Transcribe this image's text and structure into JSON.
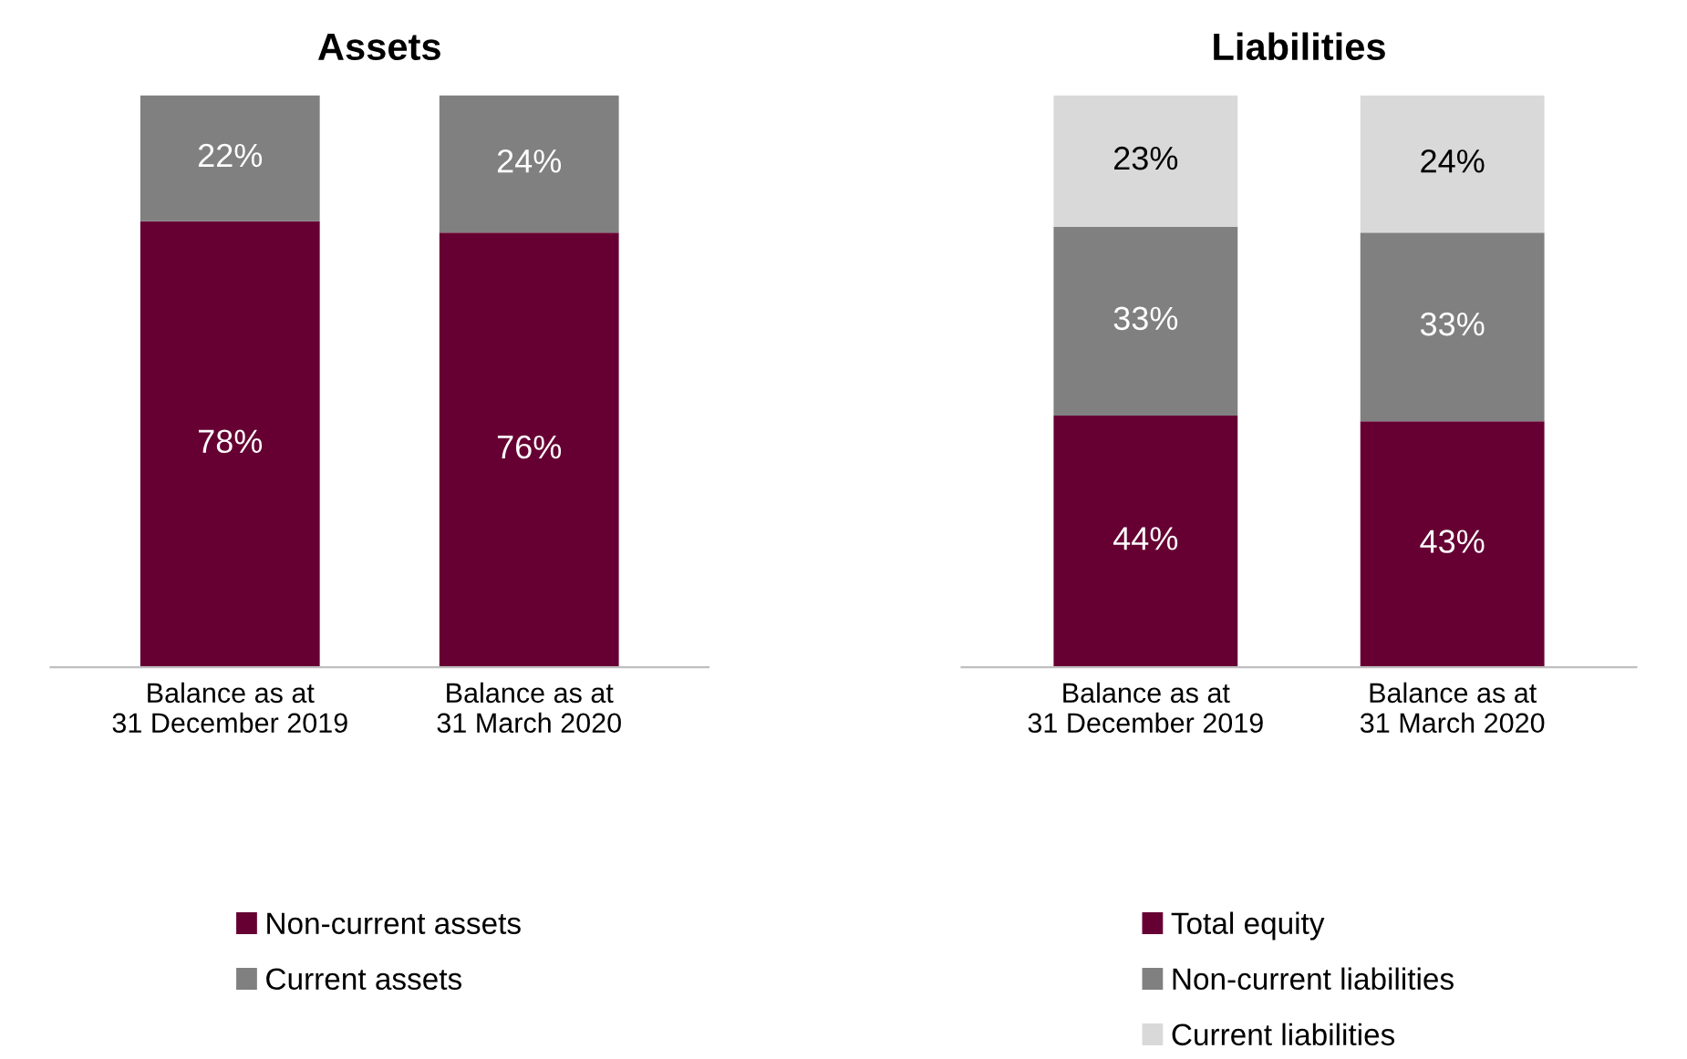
{
  "chart_data": [
    {
      "type": "bar",
      "title": "Assets",
      "stacked": true,
      "data_labels": true,
      "legend": "bottom",
      "grid": false,
      "categories": [
        "Balance as at\n31 December 2019",
        "Balance as at\n31 March 2020"
      ],
      "series": [
        {
          "name": "Non-current assets",
          "color": "#660033",
          "values": [
            78,
            76
          ],
          "value_labels": [
            "78%",
            "76%"
          ]
        },
        {
          "name": "Current assets",
          "color": "#808080",
          "values": [
            22,
            24
          ],
          "value_labels": [
            "22%",
            "24%"
          ]
        }
      ]
    },
    {
      "type": "bar",
      "title": "Liabilities",
      "stacked": true,
      "data_labels": true,
      "legend": "bottom",
      "grid": false,
      "categories": [
        "Balance as at\n31 December 2019",
        "Balance as at\n31 March 2020"
      ],
      "series": [
        {
          "name": "Total equity",
          "color": "#660033",
          "values": [
            44,
            43
          ],
          "value_labels": [
            "44%",
            "43%"
          ]
        },
        {
          "name": "Non-current liabilities",
          "color": "#808080",
          "values": [
            33,
            33
          ],
          "value_labels": [
            "33%",
            "33%"
          ]
        },
        {
          "name": "Current liabilities",
          "color": "#d9d9d9",
          "values": [
            23,
            24
          ],
          "value_labels": [
            "23%",
            "24%"
          ]
        }
      ]
    }
  ]
}
